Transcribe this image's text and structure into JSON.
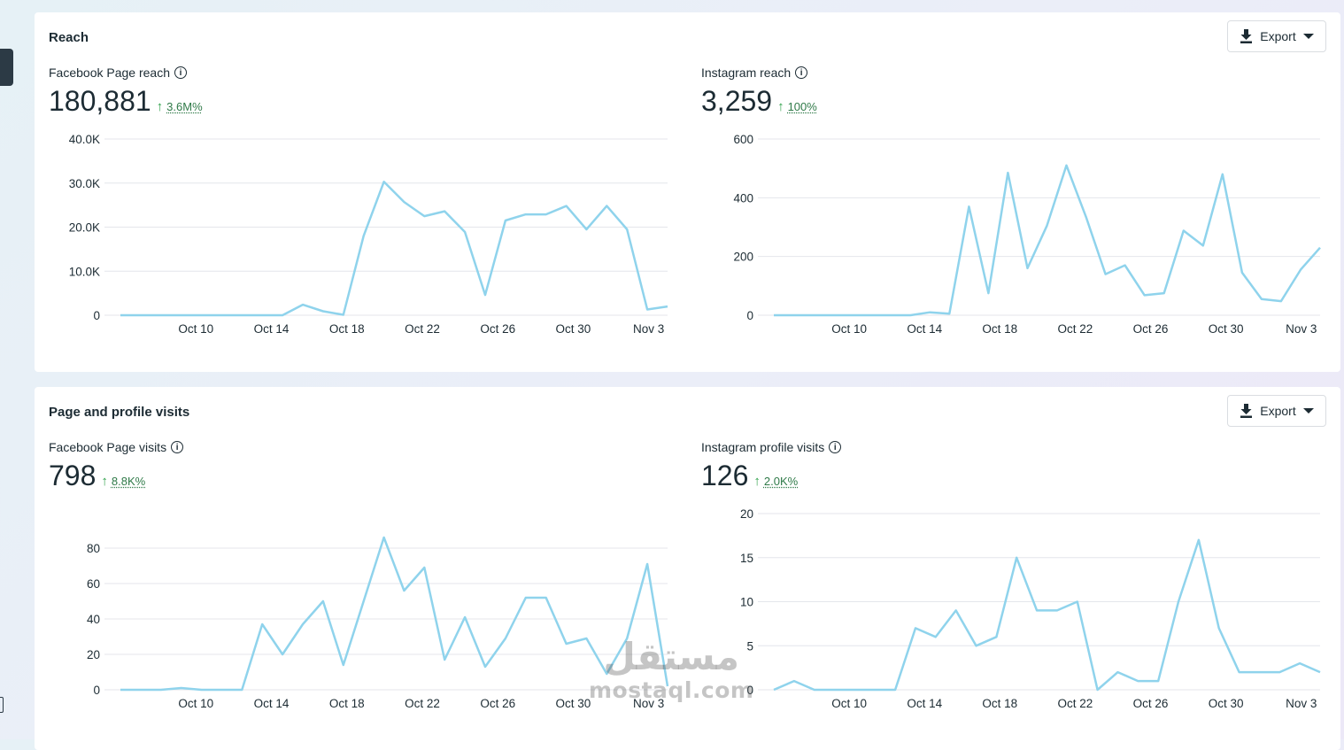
{
  "sections": [
    {
      "title": "Reach",
      "export_label": "Export",
      "metrics": [
        {
          "label": "Facebook Page reach",
          "value": "180,881",
          "change": "3.6M%",
          "chart_data": {
            "type": "line",
            "x_ticks": [
              "Oct 10",
              "Oct 14",
              "Oct 18",
              "Oct 22",
              "Oct 26",
              "Oct 30",
              "Nov 3"
            ],
            "y_ticks": [
              "0",
              "10.0K",
              "20.0K",
              "30.0K",
              "40.0K"
            ],
            "ylim": [
              0,
              40000
            ],
            "x_range": [
              "Oct 6",
              "Nov 4"
            ],
            "values": [
              0,
              0,
              0,
              0,
              0,
              0,
              0,
              0,
              0,
              2400,
              900,
              100,
              18000,
              30300,
              25700,
              22500,
              23600,
              18900,
              4600,
              21500,
              22900,
              22900,
              24800,
              19500,
              24800,
              19500,
              1300,
              2000
            ],
            "color": "#8fd3ec"
          }
        },
        {
          "label": "Instagram reach",
          "value": "3,259",
          "change": "100%",
          "chart_data": {
            "type": "line",
            "x_ticks": [
              "Oct 10",
              "Oct 14",
              "Oct 18",
              "Oct 22",
              "Oct 26",
              "Oct 30",
              "Nov 3"
            ],
            "y_ticks": [
              "0",
              "200",
              "400",
              "600"
            ],
            "ylim": [
              0,
              600
            ],
            "x_range": [
              "Oct 6",
              "Nov 4"
            ],
            "values": [
              0,
              0,
              0,
              0,
              0,
              0,
              0,
              0,
              10,
              5,
              370,
              75,
              485,
              160,
              305,
              510,
              335,
              140,
              170,
              68,
              75,
              288,
              237,
              480,
              145,
              55,
              48,
              155,
              230
            ],
            "color": "#8fd3ec"
          }
        }
      ]
    },
    {
      "title": "Page and profile visits",
      "export_label": "Export",
      "metrics": [
        {
          "label": "Facebook Page visits",
          "value": "798",
          "change": "8.8K%",
          "chart_data": {
            "type": "line",
            "x_ticks": [
              "Oct 10",
              "Oct 14",
              "Oct 18",
              "Oct 22",
              "Oct 26",
              "Oct 30",
              "Nov 3"
            ],
            "y_ticks": [
              "0",
              "20",
              "40",
              "60",
              "80"
            ],
            "ylim": [
              0,
              88
            ],
            "x_range": [
              "Oct 6",
              "Nov 4"
            ],
            "values": [
              0,
              0,
              0,
              1,
              0,
              0,
              0,
              37,
              20,
              37,
              50,
              14,
              50,
              86,
              56,
              69,
              17,
              41,
              13,
              29,
              52,
              52,
              26,
              29,
              9,
              29,
              71,
              2
            ],
            "color": "#8fd3ec"
          }
        },
        {
          "label": "Instagram profile visits",
          "value": "126",
          "change": "2.0K%",
          "chart_data": {
            "type": "line",
            "x_ticks": [
              "Oct 10",
              "Oct 14",
              "Oct 18",
              "Oct 22",
              "Oct 26",
              "Oct 30",
              "Nov 3"
            ],
            "y_ticks": [
              "0",
              "5",
              "10",
              "15",
              "20"
            ],
            "ylim": [
              0,
              20
            ],
            "x_range": [
              "Oct 6",
              "Nov 4"
            ],
            "values": [
              0,
              1,
              0,
              0,
              0,
              0,
              0,
              7,
              6,
              9,
              5,
              6,
              15,
              9,
              9,
              10,
              0,
              2,
              1,
              1,
              10,
              17,
              7,
              2,
              2,
              2,
              3,
              2
            ],
            "color": "#8fd3ec"
          }
        }
      ]
    }
  ],
  "watermark": {
    "arabic": "مستقل",
    "latin": "mostaql.com"
  }
}
